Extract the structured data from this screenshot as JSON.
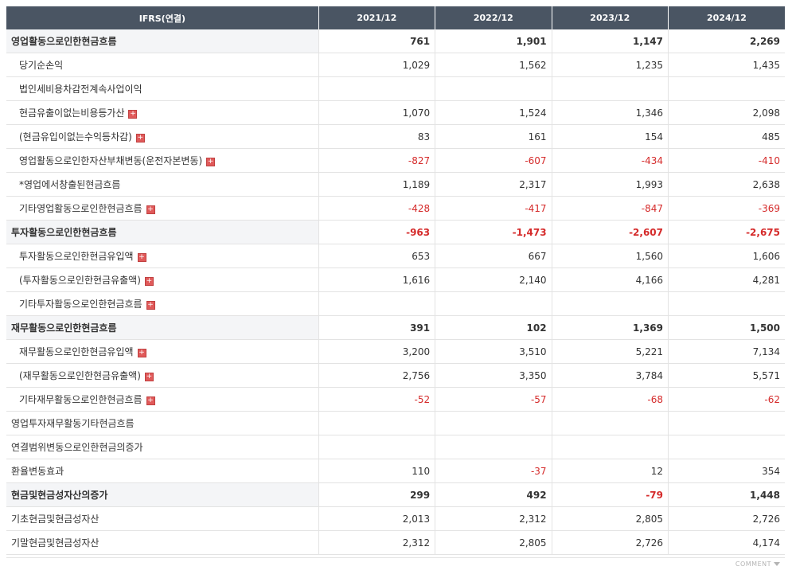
{
  "table": {
    "header": [
      "IFRS(연결)",
      "2021/12",
      "2022/12",
      "2023/12",
      "2024/12"
    ],
    "rows": [
      {
        "label": "영업활동으로인한현금흐름",
        "level": "main",
        "expand": false,
        "values": [
          "761",
          "1,901",
          "1,147",
          "2,269"
        ]
      },
      {
        "label": "당기순손익",
        "level": "sub",
        "expand": false,
        "values": [
          "1,029",
          "1,562",
          "1,235",
          "1,435"
        ]
      },
      {
        "label": "법인세비용차감전계속사업이익",
        "level": "sub",
        "expand": false,
        "values": [
          "",
          "",
          "",
          ""
        ]
      },
      {
        "label": "현금유출이없는비용등가산",
        "level": "sub",
        "expand": true,
        "values": [
          "1,070",
          "1,524",
          "1,346",
          "2,098"
        ]
      },
      {
        "label": "(현금유입이없는수익등차감)",
        "level": "sub",
        "expand": true,
        "values": [
          "83",
          "161",
          "154",
          "485"
        ]
      },
      {
        "label": "영업활동으로인한자산부채변동(운전자본변동)",
        "level": "sub",
        "expand": true,
        "values": [
          "-827",
          "-607",
          "-434",
          "-410"
        ]
      },
      {
        "label": "*영업에서창출된현금흐름",
        "level": "sub",
        "expand": false,
        "values": [
          "1,189",
          "2,317",
          "1,993",
          "2,638"
        ]
      },
      {
        "label": "기타영업활동으로인한현금흐름",
        "level": "sub",
        "expand": true,
        "values": [
          "-428",
          "-417",
          "-847",
          "-369"
        ]
      },
      {
        "label": "투자활동으로인한현금흐름",
        "level": "main",
        "expand": false,
        "values": [
          "-963",
          "-1,473",
          "-2,607",
          "-2,675"
        ]
      },
      {
        "label": "투자활동으로인한현금유입액",
        "level": "sub",
        "expand": true,
        "values": [
          "653",
          "667",
          "1,560",
          "1,606"
        ]
      },
      {
        "label": "(투자활동으로인한현금유출액)",
        "level": "sub",
        "expand": true,
        "values": [
          "1,616",
          "2,140",
          "4,166",
          "4,281"
        ]
      },
      {
        "label": "기타투자활동으로인한현금흐름",
        "level": "sub",
        "expand": true,
        "values": [
          "",
          "",
          "",
          ""
        ]
      },
      {
        "label": "재무활동으로인한현금흐름",
        "level": "main",
        "expand": false,
        "values": [
          "391",
          "102",
          "1,369",
          "1,500"
        ]
      },
      {
        "label": "재무활동으로인한현금유입액",
        "level": "sub",
        "expand": true,
        "values": [
          "3,200",
          "3,510",
          "5,221",
          "7,134"
        ]
      },
      {
        "label": "(재무활동으로인한현금유출액)",
        "level": "sub",
        "expand": true,
        "values": [
          "2,756",
          "3,350",
          "3,784",
          "5,571"
        ]
      },
      {
        "label": "기타재무활동으로인한현금흐름",
        "level": "sub",
        "expand": true,
        "values": [
          "-52",
          "-57",
          "-68",
          "-62"
        ]
      },
      {
        "label": "영업투자재무활동기타현금흐름",
        "level": "top",
        "expand": false,
        "values": [
          "",
          "",
          "",
          ""
        ]
      },
      {
        "label": "연결범위변동으로인한현금의증가",
        "level": "top",
        "expand": false,
        "values": [
          "",
          "",
          "",
          ""
        ]
      },
      {
        "label": "환율변동효과",
        "level": "top",
        "expand": false,
        "values": [
          "110",
          "-37",
          "12",
          "354"
        ]
      },
      {
        "label": "현금및현금성자산의증가",
        "level": "main",
        "expand": false,
        "values": [
          "299",
          "492",
          "-79",
          "1,448"
        ]
      },
      {
        "label": "기초현금및현금성자산",
        "level": "top",
        "expand": false,
        "values": [
          "2,013",
          "2,312",
          "2,805",
          "2,726"
        ]
      },
      {
        "label": "기말현금및현금성자산",
        "level": "top",
        "expand": false,
        "values": [
          "2,312",
          "2,805",
          "2,726",
          "4,174"
        ]
      }
    ],
    "separator_rows": [
      8,
      12,
      16
    ]
  },
  "footer": {
    "comment_label": "COMMENT",
    "toggle_icon": "triangle-down-icon"
  },
  "colors": {
    "header_bg": "#4a5563",
    "negative": "#d52b2b",
    "expand_icon": "#e05a5a"
  }
}
